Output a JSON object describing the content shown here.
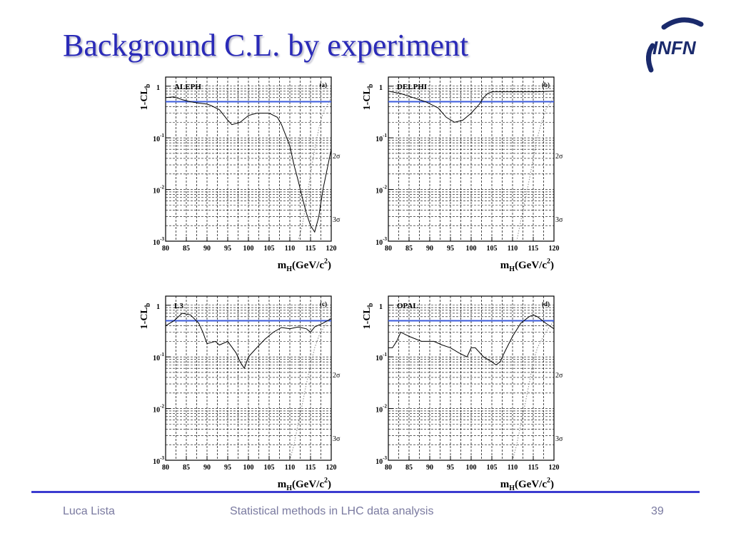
{
  "slide": {
    "title": "Background C.L. by experiment",
    "logo_text": "INFN",
    "colors": {
      "title": "#2a2ab8",
      "logo": "#1a2a6c",
      "rule": "#3b3bd0",
      "footer": "#7a7aa0",
      "threshold_line": "#3b5bdc"
    }
  },
  "footer": {
    "author": "Luca Lista",
    "course": "Statistical methods in LHC data analysis",
    "page": "39"
  },
  "chart_data": [
    {
      "type": "line",
      "panel": "(a)",
      "experiment": "ALEPH",
      "xlabel": "m_H(GeV/c^2)",
      "ylabel": "1-CL_b",
      "xlim": [
        80,
        120
      ],
      "ylim": [
        0.001,
        1.5
      ],
      "log_y": true,
      "grid": true,
      "x_ticks": [
        "80",
        "85",
        "90",
        "95",
        "100",
        "105",
        "110",
        "115",
        "120"
      ],
      "y_ticks": [
        {
          "base": "1",
          "exp": ""
        },
        {
          "base": "10",
          "exp": "-1"
        },
        {
          "base": "10",
          "exp": "-2"
        },
        {
          "base": "10",
          "exp": "-3"
        }
      ],
      "threshold": 0.5,
      "sigma_labels": [
        {
          "text": "2σ",
          "y": 0.0455
        },
        {
          "text": "3σ",
          "y": 0.0027
        }
      ],
      "observed": {
        "x": [
          80,
          82,
          84,
          86,
          88,
          90,
          91,
          93,
          95,
          96,
          98,
          100,
          102,
          105,
          107,
          108,
          110,
          111,
          112,
          113,
          114,
          115,
          116,
          117,
          118,
          120
        ],
        "y": [
          0.6,
          0.62,
          0.55,
          0.5,
          0.47,
          0.45,
          0.42,
          0.35,
          0.22,
          0.18,
          0.2,
          0.27,
          0.3,
          0.3,
          0.25,
          0.18,
          0.07,
          0.03,
          0.015,
          0.007,
          0.0035,
          0.002,
          0.0015,
          0.003,
          0.01,
          0.06
        ]
      },
      "expected_signal": {
        "x": [
          112,
          113,
          114,
          115,
          116,
          117,
          118,
          120
        ],
        "y": [
          0.001,
          0.002,
          0.006,
          0.02,
          0.06,
          0.15,
          0.3,
          0.6
        ]
      }
    },
    {
      "type": "line",
      "panel": "(b)",
      "experiment": "DELPHI",
      "xlabel": "m_H(GeV/c^2)",
      "ylabel": "1-CL_b",
      "xlim": [
        80,
        120
      ],
      "ylim": [
        0.001,
        1.5
      ],
      "log_y": true,
      "grid": true,
      "x_ticks": [
        "80",
        "85",
        "90",
        "95",
        "100",
        "105",
        "110",
        "115",
        "120"
      ],
      "y_ticks": [
        {
          "base": "1",
          "exp": ""
        },
        {
          "base": "10",
          "exp": "-1"
        },
        {
          "base": "10",
          "exp": "-2"
        },
        {
          "base": "10",
          "exp": "-3"
        }
      ],
      "threshold": 0.5,
      "sigma_labels": [
        {
          "text": "2σ",
          "y": 0.0455
        },
        {
          "text": "3σ",
          "y": 0.0027
        }
      ],
      "observed": {
        "x": [
          80,
          83,
          86,
          89,
          92,
          94,
          96,
          98,
          100,
          102,
          103,
          104,
          105,
          108,
          112,
          116,
          120
        ],
        "y": [
          0.8,
          0.72,
          0.6,
          0.5,
          0.38,
          0.25,
          0.2,
          0.22,
          0.3,
          0.45,
          0.6,
          0.72,
          0.78,
          0.78,
          0.78,
          0.78,
          0.8
        ]
      },
      "expected_signal": {
        "x": [
          111,
          112,
          113,
          114,
          115,
          116,
          117,
          118,
          120
        ],
        "y": [
          0.001,
          0.0025,
          0.006,
          0.015,
          0.04,
          0.1,
          0.2,
          0.35,
          0.6
        ]
      }
    },
    {
      "type": "line",
      "panel": "(c)",
      "experiment": "L3",
      "xlabel": "m_H(GeV/c^2)",
      "ylabel": "1-CL_b",
      "xlim": [
        80,
        120
      ],
      "ylim": [
        0.001,
        1.5
      ],
      "log_y": true,
      "grid": true,
      "x_ticks": [
        "80",
        "85",
        "90",
        "95",
        "100",
        "105",
        "110",
        "115",
        "120"
      ],
      "y_ticks": [
        {
          "base": "1",
          "exp": ""
        },
        {
          "base": "10",
          "exp": "-1"
        },
        {
          "base": "10",
          "exp": "-2"
        },
        {
          "base": "10",
          "exp": "-3"
        }
      ],
      "threshold": 0.5,
      "sigma_labels": [
        {
          "text": "2σ",
          "y": 0.0455
        },
        {
          "text": "3σ",
          "y": 0.0027
        }
      ],
      "observed": {
        "x": [
          80,
          82,
          84,
          86,
          88,
          89,
          90,
          92,
          93,
          95,
          97,
          98,
          99,
          100,
          102,
          104,
          106,
          108,
          110,
          112,
          114,
          115,
          116,
          118,
          120
        ],
        "y": [
          0.4,
          0.5,
          0.7,
          0.65,
          0.45,
          0.3,
          0.18,
          0.2,
          0.17,
          0.2,
          0.12,
          0.08,
          0.06,
          0.1,
          0.15,
          0.22,
          0.3,
          0.37,
          0.35,
          0.38,
          0.35,
          0.3,
          0.38,
          0.45,
          0.55
        ]
      },
      "expected_signal": {
        "x": [
          110,
          111,
          112,
          113,
          114,
          115,
          116,
          117,
          118,
          120
        ],
        "y": [
          0.001,
          0.002,
          0.005,
          0.012,
          0.03,
          0.07,
          0.15,
          0.25,
          0.35,
          0.6
        ]
      }
    },
    {
      "type": "line",
      "panel": "(d)",
      "experiment": "OPAL",
      "xlabel": "m_H(GeV/c^2)",
      "ylabel": "1-CL_b",
      "xlim": [
        80,
        120
      ],
      "ylim": [
        0.001,
        1.5
      ],
      "log_y": true,
      "grid": true,
      "x_ticks": [
        "80",
        "85",
        "90",
        "95",
        "100",
        "105",
        "110",
        "115",
        "120"
      ],
      "y_ticks": [
        {
          "base": "1",
          "exp": ""
        },
        {
          "base": "10",
          "exp": "-1"
        },
        {
          "base": "10",
          "exp": "-2"
        },
        {
          "base": "10",
          "exp": "-3"
        }
      ],
      "threshold": 0.5,
      "sigma_labels": [
        {
          "text": "2σ",
          "y": 0.0455
        },
        {
          "text": "3σ",
          "y": 0.0027
        }
      ],
      "observed": {
        "x": [
          80,
          81,
          82,
          83,
          85,
          88,
          91,
          93,
          95,
          97,
          99,
          100,
          101,
          103,
          105,
          106,
          107,
          108,
          110,
          112,
          114,
          115,
          116,
          118,
          120
        ],
        "y": [
          0.15,
          0.15,
          0.2,
          0.3,
          0.25,
          0.2,
          0.2,
          0.17,
          0.15,
          0.12,
          0.1,
          0.15,
          0.15,
          0.1,
          0.08,
          0.07,
          0.08,
          0.12,
          0.25,
          0.45,
          0.6,
          0.65,
          0.6,
          0.45,
          0.35
        ]
      },
      "expected_signal": {
        "x": [
          110,
          111,
          112,
          113,
          114,
          115,
          116,
          118,
          120
        ],
        "y": [
          0.001,
          0.002,
          0.005,
          0.012,
          0.03,
          0.08,
          0.15,
          0.3,
          0.5
        ]
      }
    }
  ]
}
